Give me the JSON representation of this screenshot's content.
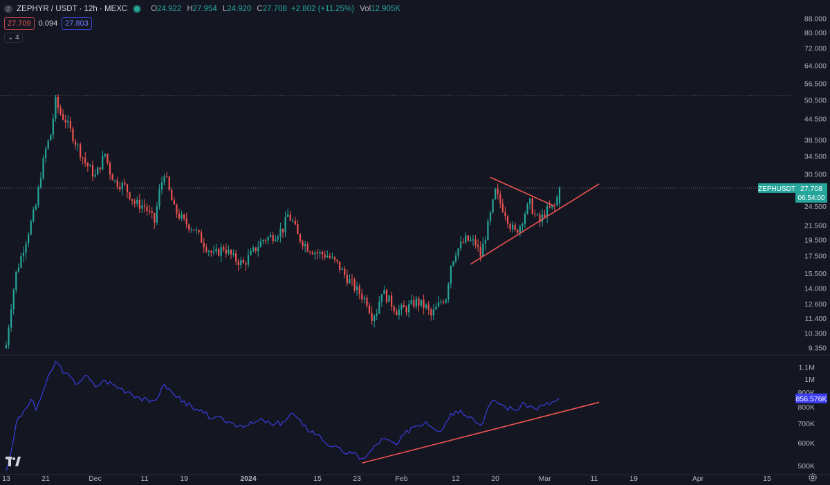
{
  "header": {
    "symbol_icon": "Z",
    "title": "ZEPHYR / USDT · 12h · MEXC",
    "status_color": "#26a69a",
    "ohlc": [
      {
        "k": "O",
        "v": "24.922"
      },
      {
        "k": "H",
        "v": "27.954"
      },
      {
        "k": "L",
        "v": "24.920"
      },
      {
        "k": "C",
        "v": "27.708"
      },
      {
        "k": "",
        "v": "+2.802 (+11.25%)"
      },
      {
        "k": "Vol",
        "v": "12.905K"
      }
    ]
  },
  "quote": {
    "bid": "27.709",
    "spread": "0.094",
    "ask": "27.803"
  },
  "indicators_count": "4",
  "chart_data": [
    {
      "type": "candlestick",
      "symbol": "ZEPHUSDT",
      "scale": "log",
      "y_ticks": [
        "88.000",
        "80.000",
        "72.000",
        "64.000",
        "56.500",
        "50.500",
        "44.500",
        "38.500",
        "34.500",
        "30.500",
        "27.500",
        "24.500",
        "21.500",
        "19.500",
        "17.500",
        "15.500",
        "14.000",
        "12.600",
        "11.400",
        "10.300",
        "9.350"
      ],
      "ylim": [
        9.1,
        93
      ],
      "x_ticks": [
        {
          "label": "13",
          "date": "2023-11-13"
        },
        {
          "label": "21",
          "date": "2023-11-21"
        },
        {
          "label": "Dec",
          "date": "2023-12-01"
        },
        {
          "label": "11",
          "date": "2023-12-11"
        },
        {
          "label": "19",
          "date": "2023-12-19"
        },
        {
          "label": "2024",
          "date": "2024-01-01"
        },
        {
          "label": "15",
          "date": "2024-01-15"
        },
        {
          "label": "23",
          "date": "2024-01-23"
        },
        {
          "label": "Feb",
          "date": "2024-02-01"
        },
        {
          "label": "12",
          "date": "2024-02-12"
        },
        {
          "label": "20",
          "date": "2024-02-20"
        },
        {
          "label": "Mar",
          "date": "2024-03-01"
        },
        {
          "label": "11",
          "date": "2024-03-11"
        },
        {
          "label": "19",
          "date": "2024-03-19"
        },
        {
          "label": "Apr",
          "date": "2024-04-01"
        },
        {
          "label": "15",
          "date": "2024-04-15"
        }
      ],
      "close_key_points": [
        {
          "date": "2023-11-13",
          "close": 9.5
        },
        {
          "date": "2023-11-14",
          "close": 12.5
        },
        {
          "date": "2023-11-15",
          "close": 15.5
        },
        {
          "date": "2023-11-17",
          "close": 19.5
        },
        {
          "date": "2023-11-19",
          "close": 24.5
        },
        {
          "date": "2023-11-20",
          "close": 30.5
        },
        {
          "date": "2023-11-21",
          "close": 36.0
        },
        {
          "date": "2023-11-22",
          "close": 40.0
        },
        {
          "date": "2023-11-23",
          "close": 50.0
        },
        {
          "date": "2023-11-24",
          "close": 46.0
        },
        {
          "date": "2023-11-25",
          "close": 44.0
        },
        {
          "date": "2023-11-27",
          "close": 38.0
        },
        {
          "date": "2023-11-29",
          "close": 33.0
        },
        {
          "date": "2023-12-01",
          "close": 30.0
        },
        {
          "date": "2023-12-03",
          "close": 35.0
        },
        {
          "date": "2023-12-04",
          "close": 31.0
        },
        {
          "date": "2023-12-05",
          "close": 29.0
        },
        {
          "date": "2023-12-07",
          "close": 28.0
        },
        {
          "date": "2023-12-09",
          "close": 25.0
        },
        {
          "date": "2023-12-11",
          "close": 24.5
        },
        {
          "date": "2023-12-13",
          "close": 22.0
        },
        {
          "date": "2023-12-14",
          "close": 27.0
        },
        {
          "date": "2023-12-15",
          "close": 31.0
        },
        {
          "date": "2023-12-16",
          "close": 27.0
        },
        {
          "date": "2023-12-17",
          "close": 24.0
        },
        {
          "date": "2023-12-19",
          "close": 22.0
        },
        {
          "date": "2023-12-21",
          "close": 21.0
        },
        {
          "date": "2023-12-23",
          "close": 19.0
        },
        {
          "date": "2023-12-25",
          "close": 17.5
        },
        {
          "date": "2023-12-27",
          "close": 18.5
        },
        {
          "date": "2023-12-29",
          "close": 17.2
        },
        {
          "date": "2023-12-31",
          "close": 16.5
        },
        {
          "date": "2024-01-02",
          "close": 18.0
        },
        {
          "date": "2024-01-04",
          "close": 19.5
        },
        {
          "date": "2024-01-06",
          "close": 20.0
        },
        {
          "date": "2024-01-08",
          "close": 21.0
        },
        {
          "date": "2024-01-09",
          "close": 23.0
        },
        {
          "date": "2024-01-10",
          "close": 22.0
        },
        {
          "date": "2024-01-11",
          "close": 20.0
        },
        {
          "date": "2024-01-13",
          "close": 18.5
        },
        {
          "date": "2024-01-15",
          "close": 17.8
        },
        {
          "date": "2024-01-17",
          "close": 17.5
        },
        {
          "date": "2024-01-19",
          "close": 16.5
        },
        {
          "date": "2024-01-21",
          "close": 15.0
        },
        {
          "date": "2024-01-23",
          "close": 13.8
        },
        {
          "date": "2024-01-25",
          "close": 12.8
        },
        {
          "date": "2024-01-26",
          "close": 11.6
        },
        {
          "date": "2024-01-27",
          "close": 12.0
        },
        {
          "date": "2024-01-28",
          "close": 13.8
        },
        {
          "date": "2024-01-29",
          "close": 13.2
        },
        {
          "date": "2024-01-31",
          "close": 12.0
        },
        {
          "date": "2024-02-02",
          "close": 12.2
        },
        {
          "date": "2024-02-04",
          "close": 12.8
        },
        {
          "date": "2024-02-06",
          "close": 12.3
        },
        {
          "date": "2024-02-07",
          "close": 11.6
        },
        {
          "date": "2024-02-09",
          "close": 12.8
        },
        {
          "date": "2024-02-10",
          "close": 13.2
        },
        {
          "date": "2024-02-11",
          "close": 16.5
        },
        {
          "date": "2024-02-12",
          "close": 18.0
        },
        {
          "date": "2024-02-14",
          "close": 19.5
        },
        {
          "date": "2024-02-16",
          "close": 19.0
        },
        {
          "date": "2024-02-17",
          "close": 17.5
        },
        {
          "date": "2024-02-18",
          "close": 20.0
        },
        {
          "date": "2024-02-19",
          "close": 23.0
        },
        {
          "date": "2024-02-20",
          "close": 27.0
        },
        {
          "date": "2024-02-21",
          "close": 25.0
        },
        {
          "date": "2024-02-22",
          "close": 23.5
        },
        {
          "date": "2024-02-23",
          "close": 21.5
        },
        {
          "date": "2024-02-24",
          "close": 20.5
        },
        {
          "date": "2024-02-25",
          "close": 21.5
        },
        {
          "date": "2024-02-26",
          "close": 23.5
        },
        {
          "date": "2024-02-27",
          "close": 25.0
        },
        {
          "date": "2024-02-28",
          "close": 23.0
        },
        {
          "date": "2024-02-29",
          "close": 22.0
        },
        {
          "date": "2024-03-01",
          "close": 23.5
        },
        {
          "date": "2024-03-02",
          "close": 24.0
        },
        {
          "date": "2024-03-03",
          "close": 24.5
        },
        {
          "date": "2024-03-04",
          "close": 27.708
        }
      ],
      "high_price_line": 52.0,
      "last_price": "27.708",
      "countdown": "06:54:00",
      "last_price_color": "#26a69a",
      "up_color": "#26a69a",
      "down_color": "#ef5350",
      "trendlines": [
        {
          "color": "#ef5350",
          "from": {
            "date": "2024-02-19",
            "price": 29.8
          },
          "to": {
            "date": "2024-03-03",
            "price": 24.5
          }
        },
        {
          "color": "#ef5350",
          "from": {
            "date": "2024-02-15",
            "price": 16.5
          },
          "to": {
            "date": "2024-03-12",
            "price": 28.5
          }
        }
      ]
    },
    {
      "type": "line",
      "scale": "log",
      "y_ticks": [
        "1.1M",
        "1M",
        "900K",
        "800K",
        "700K",
        "600K",
        "500K"
      ],
      "ylim": [
        470000,
        1180000
      ],
      "color": "#3d3ff0",
      "last_value": "856.576K",
      "key_points": [
        {
          "date": "2023-11-13",
          "value": 480000
        },
        {
          "date": "2023-11-14",
          "value": 560000
        },
        {
          "date": "2023-11-15",
          "value": 700000
        },
        {
          "date": "2023-11-17",
          "value": 790000
        },
        {
          "date": "2023-11-18",
          "value": 850000
        },
        {
          "date": "2023-11-19",
          "value": 780000
        },
        {
          "date": "2023-11-21",
          "value": 960000
        },
        {
          "date": "2023-11-23",
          "value": 1150000
        },
        {
          "date": "2023-11-25",
          "value": 1050000
        },
        {
          "date": "2023-11-27",
          "value": 960000
        },
        {
          "date": "2023-11-29",
          "value": 1030000
        },
        {
          "date": "2023-12-01",
          "value": 940000
        },
        {
          "date": "2023-12-03",
          "value": 990000
        },
        {
          "date": "2023-12-06",
          "value": 930000
        },
        {
          "date": "2023-12-08",
          "value": 900000
        },
        {
          "date": "2023-12-10",
          "value": 860000
        },
        {
          "date": "2023-12-12",
          "value": 830000
        },
        {
          "date": "2023-12-14",
          "value": 880000
        },
        {
          "date": "2023-12-15",
          "value": 960000
        },
        {
          "date": "2023-12-17",
          "value": 880000
        },
        {
          "date": "2023-12-19",
          "value": 840000
        },
        {
          "date": "2023-12-21",
          "value": 780000
        },
        {
          "date": "2023-12-23",
          "value": 760000
        },
        {
          "date": "2023-12-25",
          "value": 730000
        },
        {
          "date": "2023-12-27",
          "value": 720000
        },
        {
          "date": "2023-12-29",
          "value": 700000
        },
        {
          "date": "2024-01-01",
          "value": 690000
        },
        {
          "date": "2024-01-04",
          "value": 720000
        },
        {
          "date": "2024-01-06",
          "value": 690000
        },
        {
          "date": "2024-01-08",
          "value": 710000
        },
        {
          "date": "2024-01-10",
          "value": 760000
        },
        {
          "date": "2024-01-12",
          "value": 690000
        },
        {
          "date": "2024-01-15",
          "value": 640000
        },
        {
          "date": "2024-01-18",
          "value": 580000
        },
        {
          "date": "2024-01-20",
          "value": 560000
        },
        {
          "date": "2024-01-22",
          "value": 550000
        },
        {
          "date": "2024-01-24",
          "value": 530000
        },
        {
          "date": "2024-01-25",
          "value": 540000
        },
        {
          "date": "2024-01-28",
          "value": 620000
        },
        {
          "date": "2024-01-31",
          "value": 590000
        },
        {
          "date": "2024-02-03",
          "value": 680000
        },
        {
          "date": "2024-02-06",
          "value": 710000
        },
        {
          "date": "2024-02-09",
          "value": 660000
        },
        {
          "date": "2024-02-11",
          "value": 760000
        },
        {
          "date": "2024-02-13",
          "value": 780000
        },
        {
          "date": "2024-02-15",
          "value": 740000
        },
        {
          "date": "2024-02-17",
          "value": 690000
        },
        {
          "date": "2024-02-19",
          "value": 820000
        },
        {
          "date": "2024-02-20",
          "value": 840000
        },
        {
          "date": "2024-02-22",
          "value": 800000
        },
        {
          "date": "2024-02-24",
          "value": 780000
        },
        {
          "date": "2024-02-26",
          "value": 820000
        },
        {
          "date": "2024-02-28",
          "value": 790000
        },
        {
          "date": "2024-03-01",
          "value": 810000
        },
        {
          "date": "2024-03-03",
          "value": 835000
        },
        {
          "date": "2024-03-04",
          "value": 856576
        }
      ],
      "trendline": {
        "color": "#ef5350",
        "from": {
          "date": "2024-01-24",
          "value": 510000
        },
        "to": {
          "date": "2024-03-12",
          "value": 830000
        }
      }
    }
  ]
}
